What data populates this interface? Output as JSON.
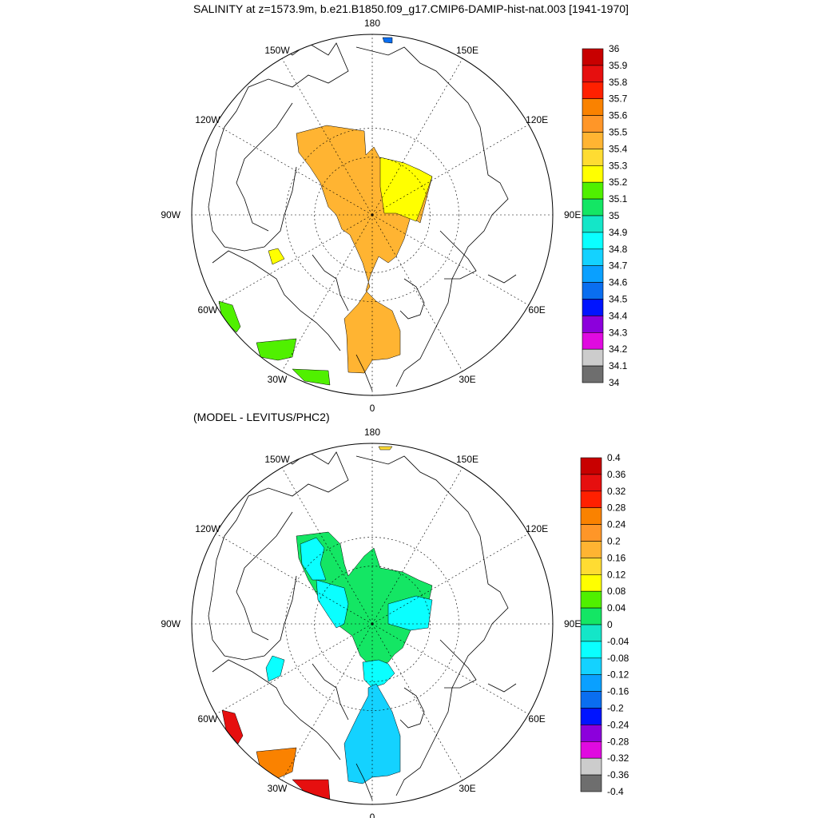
{
  "titles": {
    "top": "SALINITY at z=1573.9m, b.e21.B1850.f09_g17.CMIP6-DAMIP-hist-nat.003 [1941-1970]",
    "bottom": "(MODEL - LEVITUS/PHC2)"
  },
  "lon_labels": [
    "180",
    "150E",
    "120E",
    "90E",
    "60E",
    "30E",
    "0",
    "30W",
    "60W",
    "90W",
    "120W",
    "150W"
  ],
  "maps": [
    {
      "name": "salinity",
      "colorbar": {
        "colors": [
          "#6e6e6e",
          "#cccccc",
          "#e00ae0",
          "#8c00dc",
          "#0014ff",
          "#0a6ef0",
          "#0aa0ff",
          "#14d2ff",
          "#0affff",
          "#14e6c8",
          "#14e664",
          "#50f000",
          "#ffff00",
          "#ffdc32",
          "#ffb432",
          "#ff9628",
          "#fa8200",
          "#ff2000",
          "#e60f0f",
          "#c80000"
        ],
        "labels": [
          "36",
          "35.9",
          "35.8",
          "35.7",
          "35.6",
          "35.5",
          "35.4",
          "35.3",
          "35.2",
          "35.1",
          "35",
          "34.9",
          "34.8",
          "34.7",
          "34.6",
          "34.5",
          "34.4",
          "34.3",
          "34.2",
          "34.1",
          "34"
        ]
      }
    },
    {
      "name": "difference",
      "colorbar": {
        "colors": [
          "#6e6e6e",
          "#cccccc",
          "#e00ae0",
          "#8c00dc",
          "#0014ff",
          "#0a6ef0",
          "#0aa0ff",
          "#14d2ff",
          "#0affff",
          "#14e6c8",
          "#14e664",
          "#50f000",
          "#ffff00",
          "#ffdc32",
          "#ffb432",
          "#ff9628",
          "#fa8200",
          "#ff2000",
          "#e60f0f",
          "#c80000"
        ],
        "labels": [
          "0.4",
          "0.36",
          "0.32",
          "0.28",
          "0.24",
          "0.2",
          "0.16",
          "0.12",
          "0.08",
          "0.04",
          "0",
          "-0.04",
          "-0.08",
          "-0.12",
          "-0.16",
          "-0.2",
          "-0.24",
          "-0.28",
          "-0.32",
          "-0.36",
          "-0.4"
        ]
      }
    }
  ]
}
